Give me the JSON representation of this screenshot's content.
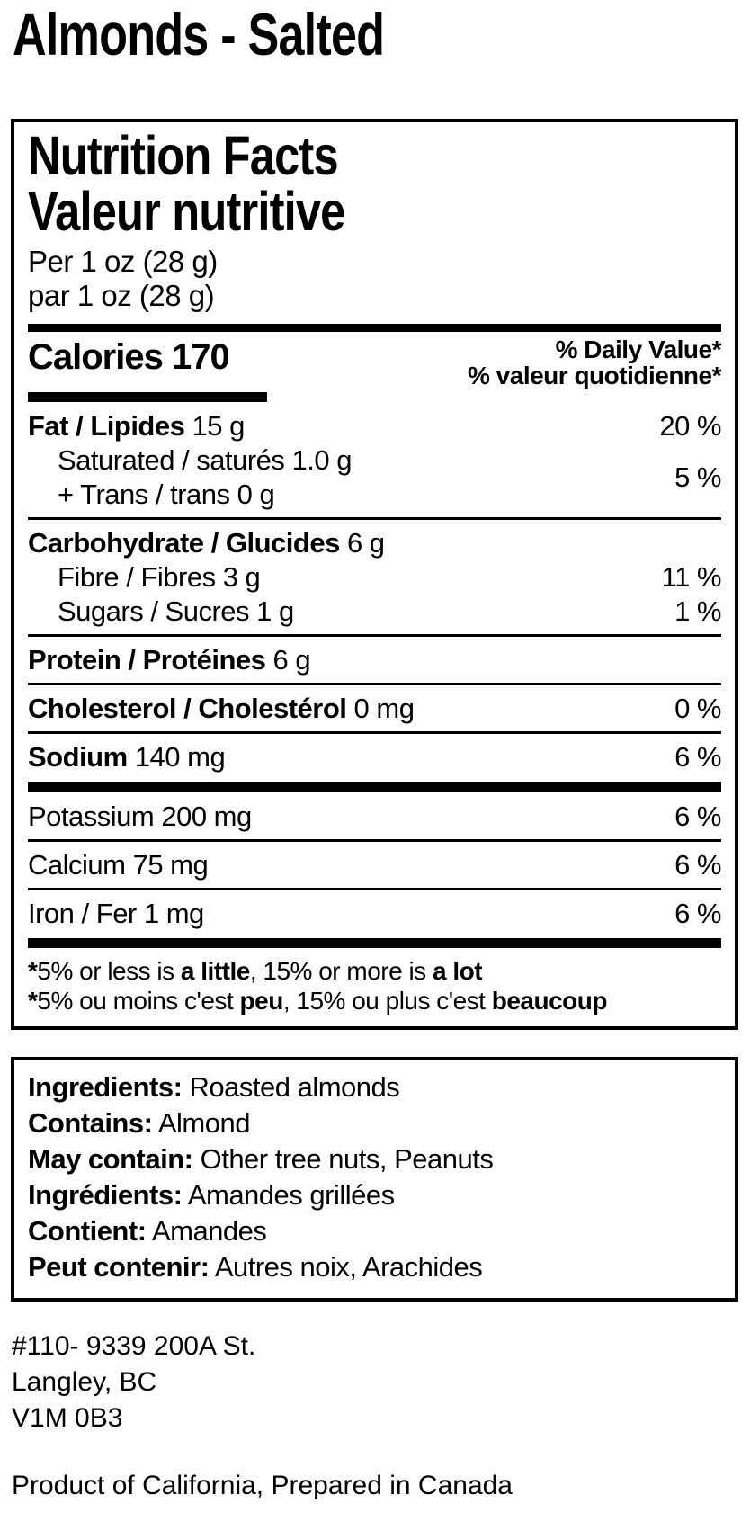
{
  "page_title": "Almonds - Salted",
  "colors": {
    "text": "#000000",
    "background": "#ffffff"
  },
  "label": {
    "title_en": "Nutrition Facts",
    "title_fr": "Valeur nutritive",
    "serving_en": "Per 1 oz (28 g)",
    "serving_fr": "par 1 oz (28 g)",
    "calories_word": "Calories",
    "calories_value": "170",
    "daily_value_en": "% Daily Value*",
    "daily_value_fr": "% valeur quotidienne*",
    "rows": {
      "fat": {
        "name": "Fat / Lipides",
        "amount": "15 g",
        "dv": "20 %"
      },
      "sat_trans": {
        "line1": "Saturated / saturés 1.0 g",
        "line2": "+ Trans / trans 0 g",
        "dv": "5 %"
      },
      "carb": {
        "name": "Carbohydrate / Glucides",
        "amount": "6 g"
      },
      "fibre": {
        "name": "Fibre / Fibres 3 g",
        "dv": "11 %"
      },
      "sugars": {
        "name": "Sugars / Sucres 1 g",
        "dv": "1 %"
      },
      "protein": {
        "name": "Protein / Protéines",
        "amount": "6 g"
      },
      "cholesterol": {
        "name": "Cholesterol / Cholestérol",
        "amount": "0 mg",
        "dv": "0 %"
      },
      "sodium": {
        "name": "Sodium",
        "amount": "140 mg",
        "dv": "6 %"
      },
      "potassium": {
        "name": "Potassium 200 mg",
        "dv": "6 %"
      },
      "calcium": {
        "name": "Calcium 75 mg",
        "dv": "6 %"
      },
      "iron": {
        "name": "Iron / Fer 1 mg",
        "dv": "6 %"
      }
    },
    "footnote_en": {
      "star": "*",
      "t1": "5% or less is ",
      "b1": "a little",
      "t2": ", 15% or more is ",
      "b2": "a lot"
    },
    "footnote_fr": {
      "star": "*",
      "t1": "5% ou moins c'est ",
      "b1": "peu",
      "t2": ", 15% ou plus c'est ",
      "b2": "beaucoup"
    }
  },
  "ingredients": {
    "lines": [
      {
        "label": "Ingredients:",
        "value": "Roasted almonds"
      },
      {
        "label": "Contains:",
        "value": "Almond"
      },
      {
        "label": "May contain:",
        "value": "Other tree nuts, Peanuts"
      },
      {
        "label": "Ingrédients:",
        "value": "Amandes grillées"
      },
      {
        "label": "Contient:",
        "value": "Amandes"
      },
      {
        "label": "Peut contenir:",
        "value": "Autres noix, Arachides"
      }
    ]
  },
  "address": {
    "line1": "#110- 9339 200A St.",
    "line2": "Langley, BC",
    "line3": "V1M 0B3"
  },
  "origin": "Product of California, Prepared in Canada"
}
